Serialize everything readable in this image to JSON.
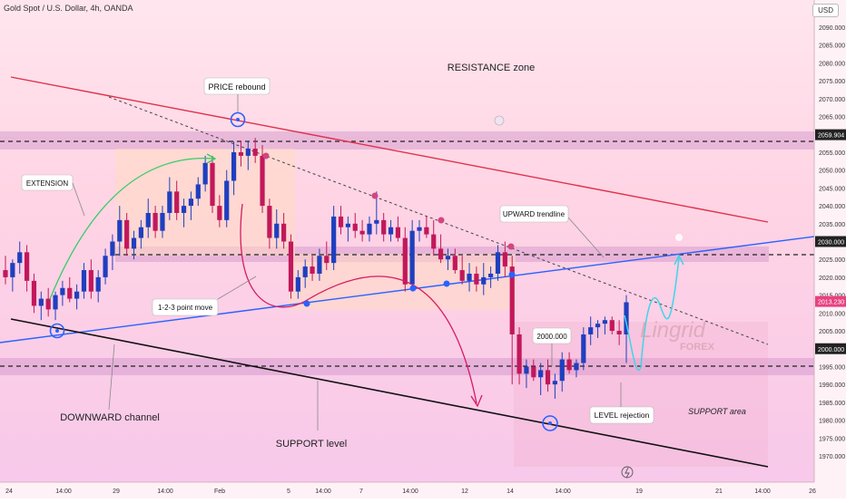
{
  "header": {
    "title": "Gold Spot / U.S. Dollar, 4h, OANDA",
    "currency_button": "USD"
  },
  "brand": {
    "name": "Lingrid",
    "sub": "FOREX"
  },
  "chart_data": {
    "type": "candlestick",
    "ylim": [
      1970,
      2095
    ],
    "y_ticks": [
      2090,
      2085,
      2080,
      2075,
      2070,
      2065,
      2060,
      2055,
      2050,
      2045,
      2040,
      2035,
      2030,
      2025,
      2020,
      2015,
      2010,
      2005,
      2000,
      1995,
      1990,
      1985,
      1980,
      1975,
      1970
    ],
    "y_tick_labels": [
      "2090.000",
      "2085.000",
      "2080.000",
      "2075.000",
      "2070.000",
      "2065.000",
      "2060.000",
      "2055.000",
      "2050.000",
      "2045.000",
      "2040.000",
      "2035.000",
      "2030.000",
      "2025.000",
      "2020.000",
      "2015.000",
      "2010.000",
      "2005.000",
      "2000.000",
      "1995.000",
      "1990.000",
      "1985.000",
      "1980.000",
      "1975.000",
      "1970.000"
    ],
    "x_tick_labels": [
      "24",
      "14:00",
      "29",
      "14:00",
      "Feb",
      "5",
      "14:00",
      "7",
      "14:00",
      "12",
      "14",
      "14:00",
      "19",
      "21",
      "14:00",
      "26"
    ],
    "price_labels": [
      {
        "label": "2059.904",
        "value": 2059.904,
        "style": "dark"
      },
      {
        "label": "2030.000",
        "value": 2030,
        "style": "dark"
      },
      {
        "label": "2013.230",
        "value": 2013.23,
        "style": "pink"
      },
      {
        "label": "2000.000",
        "value": 2000,
        "style": "dark"
      }
    ],
    "candles": [
      [
        2022,
        2026,
        2018,
        2020
      ],
      [
        2020,
        2025,
        2016,
        2024
      ],
      [
        2024,
        2030,
        2021,
        2027
      ],
      [
        2027,
        2029,
        2016,
        2019
      ],
      [
        2019,
        2021,
        2010,
        2012
      ],
      [
        2012,
        2016,
        2008,
        2014
      ],
      [
        2014,
        2017,
        2009,
        2011
      ],
      [
        2011,
        2016,
        2008,
        2015
      ],
      [
        2015,
        2019,
        2012,
        2017
      ],
      [
        2017,
        2020,
        2013,
        2014
      ],
      [
        2014,
        2018,
        2011,
        2016
      ],
      [
        2016,
        2024,
        2014,
        2022
      ],
      [
        2022,
        2025,
        2014,
        2016
      ],
      [
        2016,
        2022,
        2013,
        2020
      ],
      [
        2020,
        2028,
        2018,
        2026
      ],
      [
        2026,
        2032,
        2022,
        2030
      ],
      [
        2030,
        2040,
        2026,
        2036
      ],
      [
        2036,
        2038,
        2026,
        2028
      ],
      [
        2028,
        2033,
        2025,
        2031
      ],
      [
        2031,
        2036,
        2028,
        2034
      ],
      [
        2034,
        2042,
        2031,
        2038
      ],
      [
        2038,
        2040,
        2031,
        2033
      ],
      [
        2033,
        2040,
        2031,
        2038
      ],
      [
        2038,
        2048,
        2036,
        2044
      ],
      [
        2044,
        2047,
        2036,
        2038
      ],
      [
        2038,
        2042,
        2034,
        2040
      ],
      [
        2040,
        2044,
        2036,
        2042
      ],
      [
        2042,
        2048,
        2040,
        2046
      ],
      [
        2046,
        2054,
        2044,
        2052
      ],
      [
        2052,
        2054,
        2038,
        2040
      ],
      [
        2040,
        2043,
        2034,
        2036
      ],
      [
        2036,
        2050,
        2034,
        2047
      ],
      [
        2047,
        2058,
        2043,
        2055
      ],
      [
        2055,
        2058,
        2051,
        2054
      ],
      [
        2054,
        2058,
        2050,
        2056
      ],
      [
        2056,
        2059,
        2052,
        2054
      ],
      [
        2054,
        2057,
        2038,
        2040
      ],
      [
        2040,
        2042,
        2028,
        2031
      ],
      [
        2031,
        2039,
        2028,
        2035
      ],
      [
        2035,
        2038,
        2028,
        2030
      ],
      [
        2030,
        2032,
        2014,
        2016
      ],
      [
        2016,
        2022,
        2014,
        2020
      ],
      [
        2020,
        2025,
        2017,
        2023
      ],
      [
        2023,
        2026,
        2019,
        2021
      ],
      [
        2021,
        2028,
        2019,
        2026
      ],
      [
        2026,
        2030,
        2022,
        2024
      ],
      [
        2024,
        2040,
        2022,
        2037
      ],
      [
        2037,
        2040,
        2032,
        2034
      ],
      [
        2034,
        2037,
        2030,
        2035
      ],
      [
        2035,
        2038,
        2031,
        2033
      ],
      [
        2033,
        2036,
        2030,
        2032
      ],
      [
        2032,
        2037,
        2030,
        2035
      ],
      [
        2035,
        2044,
        2032,
        2036
      ],
      [
        2036,
        2038,
        2030,
        2032
      ],
      [
        2032,
        2036,
        2030,
        2034
      ],
      [
        2034,
        2037,
        2030,
        2031
      ],
      [
        2031,
        2034,
        2016,
        2018
      ],
      [
        2018,
        2036,
        2016,
        2033
      ],
      [
        2033,
        2036,
        2030,
        2034
      ],
      [
        2034,
        2037,
        2031,
        2032
      ],
      [
        2032,
        2036,
        2026,
        2028
      ],
      [
        2028,
        2032,
        2024,
        2025
      ],
      [
        2025,
        2028,
        2022,
        2026
      ],
      [
        2026,
        2028,
        2021,
        2022
      ],
      [
        2022,
        2026,
        2018,
        2019
      ],
      [
        2019,
        2024,
        2016,
        2021
      ],
      [
        2021,
        2023,
        2016,
        2018
      ],
      [
        2018,
        2024,
        2015,
        2020
      ],
      [
        2020,
        2023,
        2017,
        2021
      ],
      [
        2021,
        2029,
        2019,
        2027
      ],
      [
        2027,
        2030,
        2020,
        2023
      ],
      [
        2023,
        2026,
        1990,
        2004
      ],
      [
        2004,
        2006,
        1990,
        1993
      ],
      [
        1993,
        1997,
        1989,
        1995
      ],
      [
        1995,
        1997,
        1991,
        1992
      ],
      [
        1992,
        1996,
        1987,
        1994
      ],
      [
        1994,
        1997,
        1988,
        1990
      ],
      [
        1990,
        1993,
        1986,
        1991
      ],
      [
        1991,
        1999,
        1988,
        1997
      ],
      [
        1997,
        1999,
        1993,
        1994
      ],
      [
        1994,
        1997,
        1992,
        1996
      ],
      [
        1996,
        2006,
        1994,
        2004
      ],
      [
        2004,
        2009,
        2001,
        2006
      ],
      [
        2006,
        2008,
        2003,
        2007
      ],
      [
        2007,
        2009,
        2004,
        2008
      ],
      [
        2008,
        2009,
        2004,
        2005
      ],
      [
        2005,
        2008,
        2001,
        2004
      ],
      [
        2004,
        2015,
        1996,
        2013
      ]
    ]
  },
  "annotations": {
    "resistance_zone": "RESISTANCE zone",
    "price_rebound": "PRICE rebound",
    "extension": "EXTENSION",
    "upward_trendline": "UPWARD trendline",
    "point_move": "1-2-3 point move",
    "label_2000": "2000.000",
    "level_rejection": "LEVEL rejection",
    "support_area": "SUPPORT area",
    "downward_channel": "DOWNWARD channel",
    "support_level": "SUPPORT level"
  },
  "colors": {
    "bull": "#1f3fbf",
    "bear": "#c2185b",
    "red_line": "#e0304a",
    "blue_line": "#2962ff",
    "black_line": "#111111",
    "cyan": "#3fd5e8",
    "green_arrow": "#33cc66"
  }
}
